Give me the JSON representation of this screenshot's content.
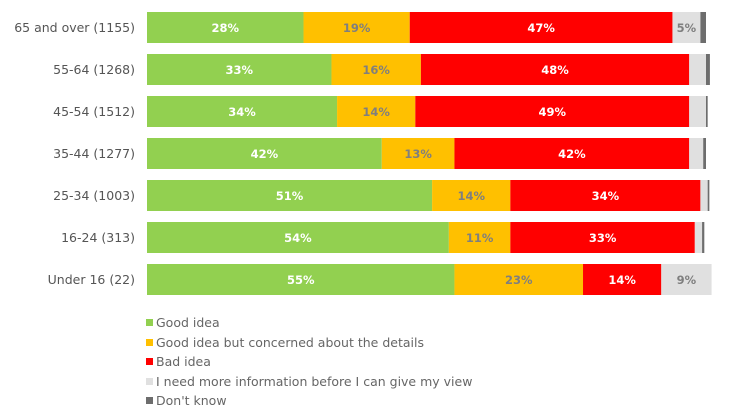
{
  "chart_data": {
    "type": "bar",
    "orientation": "horizontal",
    "stacked": true,
    "percent": true,
    "xlim": [
      0,
      100
    ],
    "grid": false,
    "legend_position": "bottom-left",
    "categories": [
      "65 and over (1155)",
      "55-64 (1268)",
      "45-54 (1512)",
      "35-44 (1277)",
      "25-34 (1003)",
      "16-24 (313)",
      "Under 16 (22)"
    ],
    "series": [
      {
        "name": "Good idea",
        "color": "#92d050",
        "label_color": "#ffffff",
        "values": [
          28,
          33,
          34,
          42,
          51,
          54,
          55
        ]
      },
      {
        "name": "Good idea but concerned about the details",
        "color": "#ffc000",
        "label_color": "#7f7f7f",
        "values": [
          19,
          16,
          14,
          13,
          14,
          11,
          23
        ]
      },
      {
        "name": "Bad idea",
        "color": "#ff0000",
        "label_color": "#ffffff",
        "values": [
          47,
          48,
          49,
          42,
          34,
          33,
          14
        ]
      },
      {
        "name": "I need more information before I can give my view",
        "color": "#e0e0e0",
        "label_color": "#7f7f7f",
        "values": [
          5,
          3,
          3,
          2.5,
          1.3,
          1.3,
          9
        ]
      },
      {
        "name": "Don't know",
        "color": "#6d6d6d",
        "label_color": "#ffffff",
        "values": [
          1,
          0.7,
          0.3,
          0.5,
          0.3,
          0.4,
          0
        ]
      }
    ],
    "data_labels_min": 5
  }
}
